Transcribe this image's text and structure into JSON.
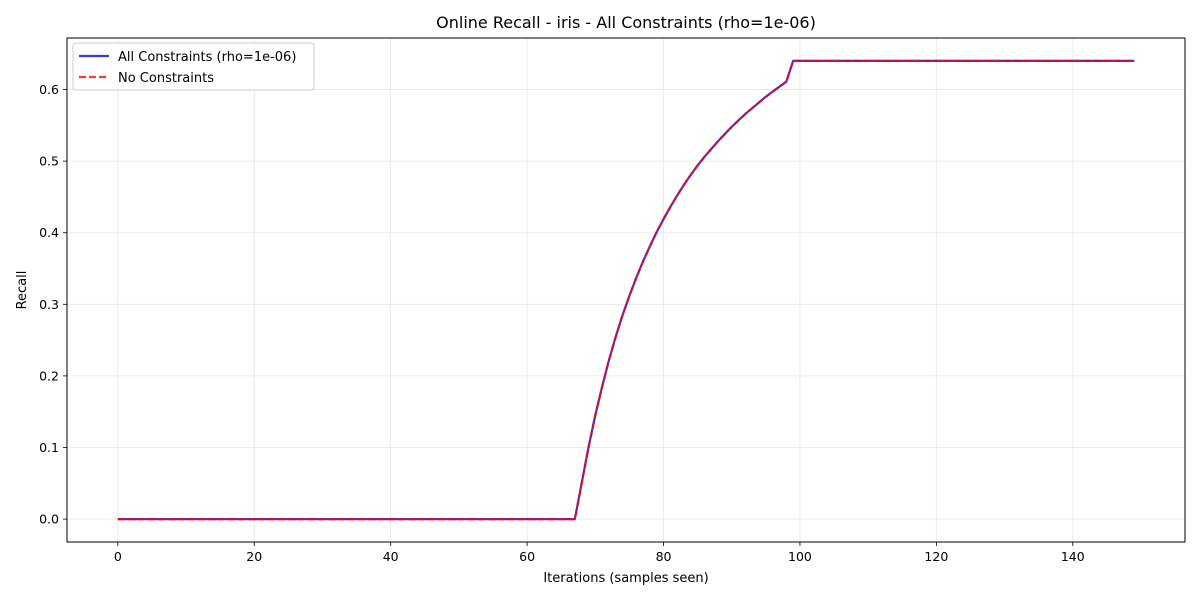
{
  "chart_data": {
    "type": "line",
    "title": "Online Recall - iris - All Constraints (rho=1e-06)",
    "xlabel": "Iterations (samples seen)",
    "ylabel": "Recall",
    "xlim": [
      -7.45,
      156.45
    ],
    "ylim": [
      -0.032,
      0.672
    ],
    "xticks": [
      0,
      20,
      40,
      60,
      80,
      100,
      120,
      140
    ],
    "yticks": [
      0.0,
      0.1,
      0.2,
      0.3,
      0.4,
      0.5,
      0.6
    ],
    "xtick_labels": [
      "0",
      "20",
      "40",
      "60",
      "80",
      "100",
      "120",
      "140"
    ],
    "ytick_labels": [
      "0.0",
      "0.1",
      "0.2",
      "0.3",
      "0.4",
      "0.5",
      "0.6"
    ],
    "grid": true,
    "legend_position": "top-left",
    "series": [
      {
        "name": "All Constraints (rho=1e-06)",
        "color": "#0000dd",
        "style": "solid",
        "x": [
          0,
          67,
          68,
          69,
          70,
          71,
          72,
          73,
          74,
          75,
          76,
          77,
          78,
          79,
          80,
          81,
          82,
          83,
          84,
          85,
          86,
          87,
          88,
          89,
          90,
          91,
          92,
          93,
          94,
          95,
          96,
          97,
          98,
          99,
          149
        ],
        "y": [
          0.0,
          0.0,
          0.05,
          0.1,
          0.145,
          0.185,
          0.222,
          0.255,
          0.285,
          0.312,
          0.337,
          0.36,
          0.381,
          0.401,
          0.419,
          0.436,
          0.452,
          0.467,
          0.481,
          0.494,
          0.506,
          0.517,
          0.528,
          0.538,
          0.548,
          0.557,
          0.566,
          0.574,
          0.582,
          0.59,
          0.597,
          0.604,
          0.611,
          0.64,
          0.64
        ]
      },
      {
        "name": "No Constraints",
        "color": "#ff0000",
        "style": "dashed",
        "x": [
          0,
          67,
          68,
          69,
          70,
          71,
          72,
          73,
          74,
          75,
          76,
          77,
          78,
          79,
          80,
          81,
          82,
          83,
          84,
          85,
          86,
          87,
          88,
          89,
          90,
          91,
          92,
          93,
          94,
          95,
          96,
          97,
          98,
          99,
          149
        ],
        "y": [
          0.0,
          0.0,
          0.05,
          0.1,
          0.145,
          0.185,
          0.222,
          0.255,
          0.285,
          0.312,
          0.337,
          0.36,
          0.381,
          0.401,
          0.419,
          0.436,
          0.452,
          0.467,
          0.481,
          0.494,
          0.506,
          0.517,
          0.528,
          0.538,
          0.548,
          0.557,
          0.566,
          0.574,
          0.582,
          0.59,
          0.597,
          0.604,
          0.611,
          0.64,
          0.64
        ]
      }
    ]
  }
}
